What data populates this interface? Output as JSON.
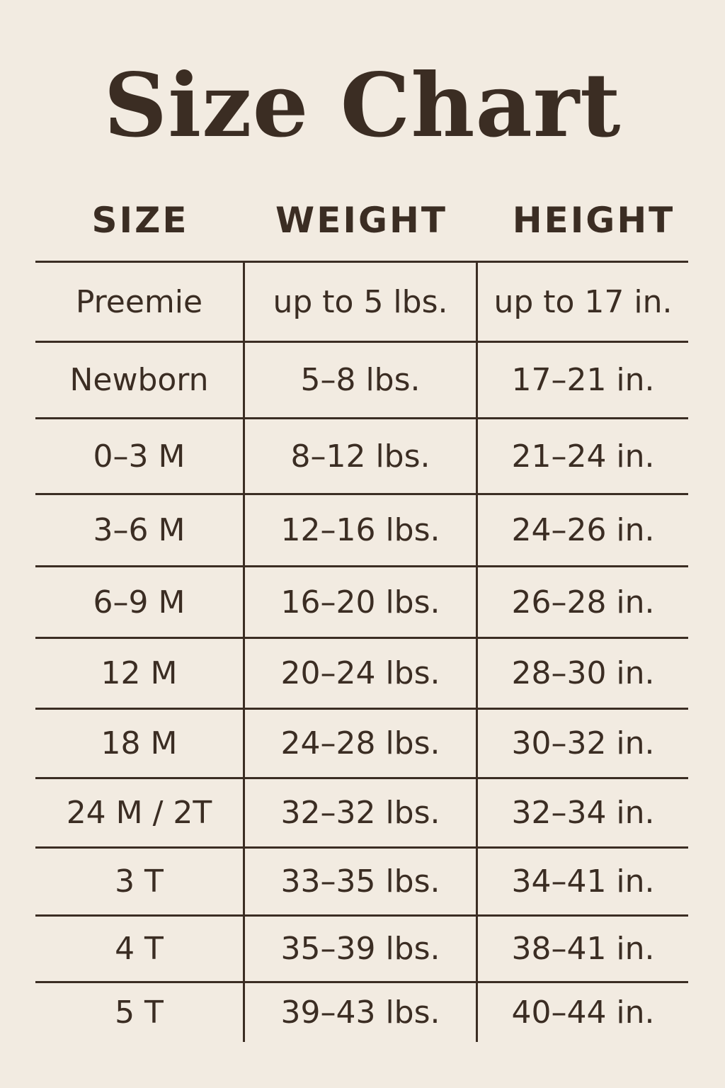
{
  "title": "Size Chart",
  "headers": [
    "SIZE",
    "WEIGHT",
    "HEIGHT"
  ],
  "rows": [
    [
      "Preemie",
      "up to 5 lbs.",
      "up to 17 in."
    ],
    [
      "Newborn",
      "5–8 lbs.",
      "17–21 in."
    ],
    [
      "0–3 M",
      "8–12 lbs.",
      "21–24 in."
    ],
    [
      "3–6 M",
      "12–16 lbs.",
      "24–26 in."
    ],
    [
      "6–9 M",
      "16–20 lbs.",
      "26–28 in."
    ],
    [
      "12 M",
      "20–24 lbs.",
      "28–30 in."
    ],
    [
      "18 M",
      "24–28 lbs.",
      "30–32 in."
    ],
    [
      "24 M / 2T",
      "32–32 lbs.",
      "32–34 in."
    ],
    [
      "3 T",
      "33–35 lbs.",
      "34–41 in."
    ],
    [
      "4 T",
      "35–39 lbs.",
      "38–41 in."
    ],
    [
      "5 T",
      "39–43 lbs.",
      "40–44 in."
    ]
  ],
  "colors": {
    "background": "#f2ebe1",
    "text": "#3b2d23"
  }
}
